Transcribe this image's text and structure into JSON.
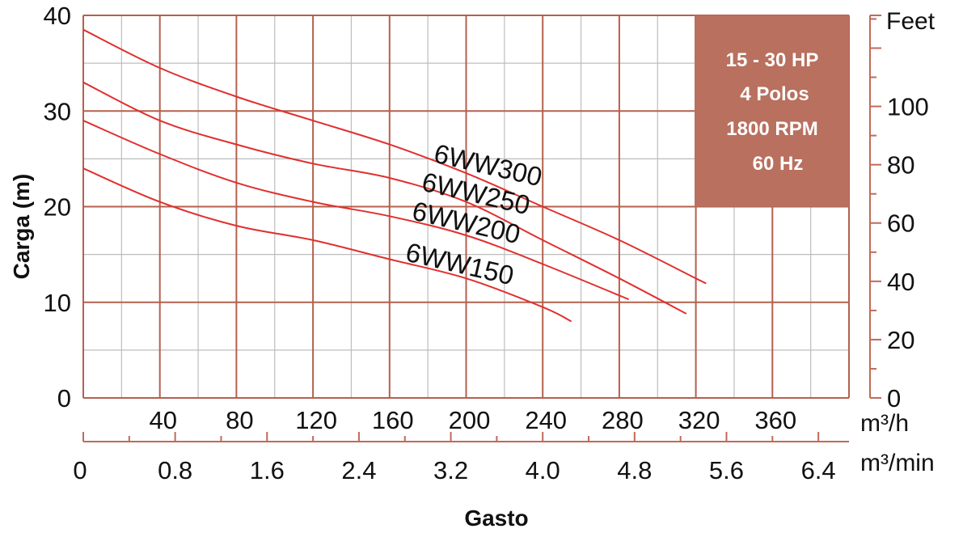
{
  "chart_data": {
    "type": "line",
    "xlabel": "Gasto",
    "ylabel": "Carga (m)",
    "xlim": [
      0,
      400
    ],
    "ylim": [
      0,
      40
    ],
    "x_unit_primary": "m³/h",
    "x_unit_secondary": "m³/min",
    "y_unit_secondary": "Feet",
    "x_ticks": [
      "40",
      "80",
      "120",
      "160",
      "200",
      "240",
      "280",
      "320",
      "360"
    ],
    "x_tick_values": [
      40,
      80,
      120,
      160,
      200,
      240,
      280,
      320,
      360
    ],
    "x2_ticks": [
      "0",
      "0.8",
      "1.6",
      "2.4",
      "3.2",
      "4.0",
      "4.8",
      "5.6",
      "6.4"
    ],
    "x2_tick_values": [
      0,
      0.8,
      1.6,
      2.4,
      3.2,
      4.0,
      4.8,
      5.6,
      6.4
    ],
    "y_ticks": [
      "0",
      "10",
      "20",
      "30",
      "40"
    ],
    "y_tick_values": [
      0,
      10,
      20,
      30,
      40
    ],
    "y2_ticks": [
      "0",
      "20",
      "40",
      "60",
      "80",
      "100"
    ],
    "y2_tick_values": [
      0,
      20,
      40,
      60,
      80,
      100
    ],
    "grid": true,
    "info_box": [
      "15 - 30 HP",
      "4 Polos",
      "1800 RPM",
      "60 Hz"
    ],
    "series": [
      {
        "name": "6WW300",
        "x": [
          0,
          40,
          80,
          120,
          160,
          200,
          240,
          280,
          320,
          325
        ],
        "y": [
          38.5,
          34.5,
          31.5,
          29,
          26.5,
          23.5,
          20,
          16.5,
          12.5,
          12
        ]
      },
      {
        "name": "6WW250",
        "x": [
          0,
          40,
          80,
          120,
          160,
          200,
          240,
          280,
          315
        ],
        "y": [
          33,
          29,
          26.5,
          24.5,
          23,
          20.5,
          16.5,
          12.5,
          8.8
        ]
      },
      {
        "name": "6WW200",
        "x": [
          0,
          40,
          80,
          120,
          160,
          200,
          240,
          285
        ],
        "y": [
          29,
          25.5,
          22.5,
          20.5,
          19,
          17,
          14,
          10.3
        ]
      },
      {
        "name": "6WW150",
        "x": [
          0,
          40,
          80,
          120,
          160,
          200,
          240,
          255
        ],
        "y": [
          24,
          20.5,
          18,
          16.5,
          14.5,
          12.5,
          9.5,
          8
        ]
      }
    ]
  },
  "colors": {
    "grid_major": "#b5604e",
    "grid_minor": "#bdbdbd",
    "curve": "#e0302f",
    "info_box": "#b9705e",
    "axis": "#c06a58"
  }
}
